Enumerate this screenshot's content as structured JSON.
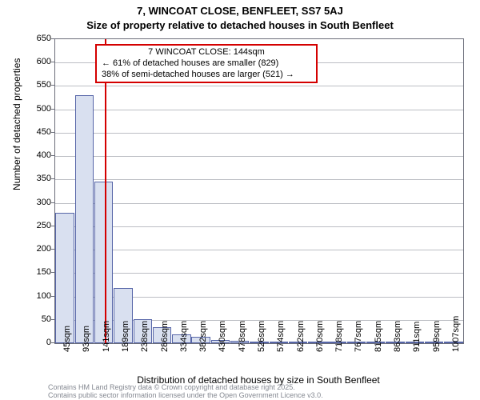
{
  "title": {
    "line1": "7, WINCOAT CLOSE, BENFLEET, SS7 5AJ",
    "line2": "Size of property relative to detached houses in South Benfleet"
  },
  "yaxis": {
    "label": "Number of detached properties",
    "min": 0,
    "max": 650,
    "ticks": [
      0,
      50,
      100,
      150,
      200,
      250,
      300,
      350,
      400,
      450,
      500,
      550,
      600,
      650
    ],
    "grid_color": "#6b6e7a"
  },
  "xaxis": {
    "label": "Distribution of detached houses by size in South Benfleet",
    "categories": [
      "45sqm",
      "93sqm",
      "141sqm",
      "189sqm",
      "238sqm",
      "286sqm",
      "334sqm",
      "382sqm",
      "430sqm",
      "478sqm",
      "526sqm",
      "574sqm",
      "622sqm",
      "670sqm",
      "718sqm",
      "767sqm",
      "815sqm",
      "863sqm",
      "911sqm",
      "959sqm",
      "1007sqm"
    ]
  },
  "bars": {
    "values": [
      278,
      530,
      345,
      118,
      51,
      34,
      19,
      13,
      7,
      6,
      4,
      2,
      2,
      1,
      1,
      0,
      2,
      0,
      1,
      1,
      1
    ],
    "fill": "#d9e0f0",
    "border": "#5766a8"
  },
  "marker": {
    "position_sqm": 144,
    "color": "#d40000"
  },
  "annotation": {
    "line1": "7 WINCOAT CLOSE: 144sqm",
    "line2": "← 61% of detached houses are smaller (829)",
    "line3": "38% of semi-detached houses are larger (521) →",
    "border_color": "#d40000"
  },
  "footer": {
    "line1": "Contains HM Land Registry data © Crown copyright and database right 2025.",
    "line2": "Contains public sector information licensed under the Open Government Licence v3.0."
  },
  "style": {
    "background": "#ffffff",
    "axis_color": "#6b6e7a",
    "title_fontsize": 13,
    "tick_fontsize": 11,
    "label_fontsize": 12,
    "footer_fontsize": 9,
    "footer_color": "#848891"
  },
  "chart_type": "histogram"
}
